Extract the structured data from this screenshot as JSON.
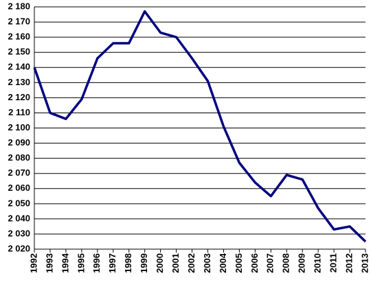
{
  "chart_data": {
    "type": "line",
    "categories": [
      "1992",
      "1993",
      "1994",
      "1995",
      "1996",
      "1997",
      "1998",
      "1999",
      "2000",
      "2001",
      "2002",
      "2003",
      "2004",
      "2005",
      "2006",
      "2007",
      "2008",
      "2009",
      "2010",
      "2011",
      "2012",
      "2013"
    ],
    "series": [
      {
        "color": "#000080",
        "values": [
          2140,
          2110,
          2106,
          2119,
          2146,
          2156,
          2156,
          2177,
          2163,
          2160,
          2146,
          2131,
          2101,
          2077,
          2064,
          2055,
          2069,
          2066,
          2047,
          2033,
          2035,
          2025
        ]
      }
    ],
    "ylim": [
      2020,
      2180
    ],
    "yticks": [
      {
        "value": 2020,
        "label": "2 020"
      },
      {
        "value": 2030,
        "label": "2 030"
      },
      {
        "value": 2040,
        "label": "2 040"
      },
      {
        "value": 2050,
        "label": "2 050"
      },
      {
        "value": 2060,
        "label": "2 060"
      },
      {
        "value": 2070,
        "label": "2 070"
      },
      {
        "value": 2080,
        "label": "2 080"
      },
      {
        "value": 2090,
        "label": "2 090"
      },
      {
        "value": 2100,
        "label": "2 100"
      },
      {
        "value": 2110,
        "label": "2 110"
      },
      {
        "value": 2120,
        "label": "2 120"
      },
      {
        "value": 2130,
        "label": "2 130"
      },
      {
        "value": 2140,
        "label": "2 140"
      },
      {
        "value": 2150,
        "label": "2 150"
      },
      {
        "value": 2160,
        "label": "2 160"
      },
      {
        "value": 2170,
        "label": "2 170"
      },
      {
        "value": 2180,
        "label": "2 180"
      }
    ],
    "grid": true
  }
}
